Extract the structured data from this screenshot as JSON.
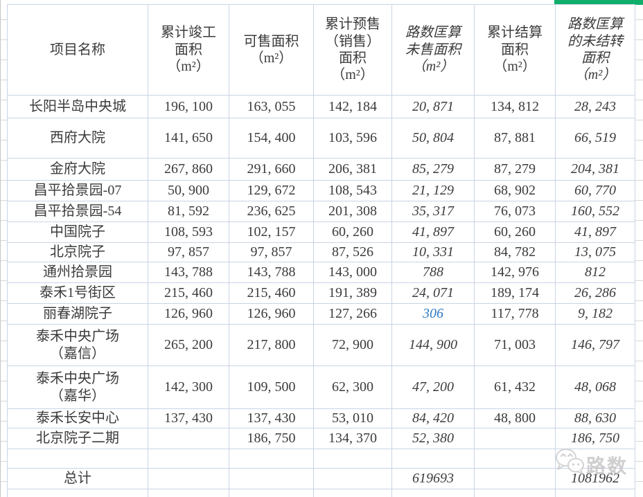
{
  "table": {
    "columns": [
      {
        "label": "项目名称",
        "italic": false
      },
      {
        "label": "累计竣工\n面积\n（m²）",
        "italic": false
      },
      {
        "label": "可售面积\n（m²）",
        "italic": false
      },
      {
        "label": "累计预售\n（销售）\n面积\n（m²）",
        "italic": false
      },
      {
        "label": "路数匡算\n未售面积\n（m²）",
        "italic": true
      },
      {
        "label": "累计结算\n面积\n（m²）",
        "italic": false
      },
      {
        "label": "路数匡算\n的未结转\n面积\n（m²）",
        "italic": true
      }
    ],
    "rows": [
      {
        "name": "长阳半岛中央城",
        "values": [
          "196, 100",
          "163, 055",
          "142, 184",
          "20, 871",
          "134, 812",
          "28, 243"
        ]
      },
      {
        "name": "西府大院",
        "values": [
          "141, 650",
          "154, 400",
          "103, 596",
          "50, 804",
          "87, 881",
          "66, 519"
        ]
      },
      {
        "name": "金府大院",
        "values": [
          "267, 860",
          "291, 660",
          "206, 381",
          "85, 279",
          "87, 279",
          "204, 381"
        ]
      },
      {
        "name": "昌平拾景园-07",
        "values": [
          "50, 900",
          "129, 672",
          "108, 543",
          "21, 129",
          "68, 902",
          "60, 770"
        ]
      },
      {
        "name": "昌平拾景园-54",
        "values": [
          "81, 592",
          "236, 625",
          "201, 308",
          "35, 317",
          "76, 073",
          "160, 552"
        ]
      },
      {
        "name": "中国院子",
        "values": [
          "108, 593",
          "102, 157",
          "60, 260",
          "41, 897",
          "60, 260",
          "41, 897"
        ]
      },
      {
        "name": "北京院子",
        "values": [
          "97, 857",
          "97, 857",
          "87, 526",
          "10, 331",
          "84, 782",
          "13, 075"
        ]
      },
      {
        "name": "通州拾景园",
        "values": [
          "143, 788",
          "143, 788",
          "143, 000",
          "788",
          "142, 976",
          "812"
        ]
      },
      {
        "name": "泰禾1号街区",
        "values": [
          "215, 460",
          "215, 460",
          "191, 389",
          "24, 071",
          "189, 174",
          "26, 286"
        ]
      },
      {
        "name": "丽春湖院子",
        "values": [
          "126, 960",
          "126, 960",
          "127, 266",
          "306",
          "117, 778",
          "9, 182"
        ],
        "highlight": {
          "col": 3,
          "style": "blue"
        }
      },
      {
        "name": "泰禾中央广场\n（嘉信）",
        "values": [
          "265, 200",
          "217, 800",
          "72, 900",
          "144, 900",
          "71, 003",
          "146, 797"
        ]
      },
      {
        "name": "泰禾中央广场\n（嘉华）",
        "values": [
          "142, 300",
          "109, 500",
          "62, 300",
          "47, 200",
          "61, 432",
          "48, 068"
        ]
      },
      {
        "name": "泰禾长安中心",
        "values": [
          "137, 430",
          "137, 430",
          "53, 010",
          "84, 420",
          "48, 800",
          "88, 630"
        ]
      },
      {
        "name": "北京院子二期",
        "values": [
          "",
          "186, 750",
          "134, 370",
          "52, 380",
          "",
          "186, 750"
        ]
      },
      {
        "name": "",
        "values": [
          "",
          "",
          "",
          "",
          "",
          ""
        ]
      },
      {
        "name": "总计",
        "values": [
          "",
          "",
          "",
          "619693",
          "",
          "1081962"
        ],
        "is_total": true
      },
      {
        "name": "",
        "values": [
          "",
          "",
          "",
          "",
          "",
          ""
        ]
      }
    ]
  },
  "colors": {
    "accent_green": "#0fae6b",
    "highlight_blue": "#2e79c0",
    "gridline": "#c9d4e6",
    "text": "#3b3b3b"
  },
  "watermark": {
    "text": "路数",
    "icon": "wechat-icon"
  }
}
